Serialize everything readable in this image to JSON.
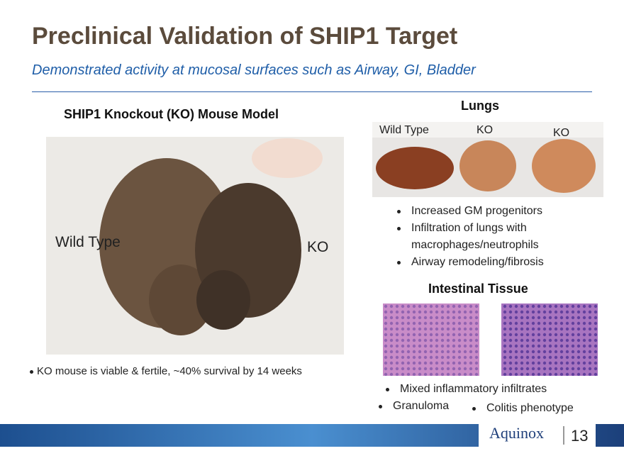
{
  "header": {
    "title": "Preclinical Validation of SHIP1 Target",
    "subtitle": "Demonstrated activity at mucosal surfaces such as Airway, GI, Bladder"
  },
  "mouse_model": {
    "heading": "SHIP1 Knockout (KO) Mouse Model",
    "label_wild_type": "Wild Type",
    "label_ko": "KO",
    "bullet": "KO mouse is viable & fertile, ~40% survival by 14 weeks"
  },
  "lungs": {
    "heading": "Lungs",
    "image_labels": [
      "Wild Type",
      "KO",
      "KO"
    ],
    "bullets": [
      "Increased GM progenitors",
      "Infiltration of lungs with macrophages/neutrophils",
      "Airway remodeling/fibrosis"
    ]
  },
  "intestinal": {
    "heading": "Intestinal Tissue",
    "bullets": [
      "Mixed inflammatory infiltrates",
      "Granuloma",
      "Colitis phenotype"
    ]
  },
  "footer": {
    "logo": "Aquinox",
    "page_number": 13
  }
}
